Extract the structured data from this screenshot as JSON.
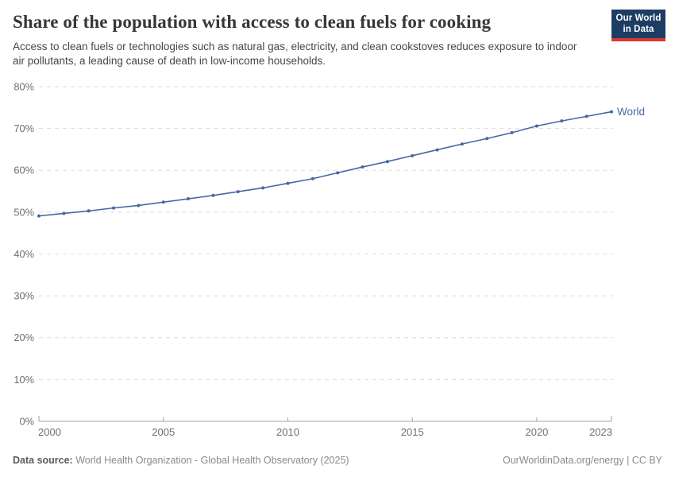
{
  "header": {
    "logo_line1": "Our World",
    "logo_line2": "in Data",
    "logo_bg_color": "#1d3d63",
    "logo_accent_color": "#d73a34"
  },
  "chart_data": {
    "type": "line",
    "title": "Share of the population with access to clean fuels for cooking",
    "subtitle": "Access to clean fuels or technologies such as natural gas, electricity, and clean cookstoves reduces exposure to indoor air pollutants, a leading cause of death in low-income households.",
    "x": [
      2000,
      2001,
      2002,
      2003,
      2004,
      2005,
      2006,
      2007,
      2008,
      2009,
      2010,
      2011,
      2012,
      2013,
      2014,
      2015,
      2016,
      2017,
      2018,
      2019,
      2020,
      2021,
      2022,
      2023
    ],
    "series": [
      {
        "name": "World",
        "color": "#4568a3",
        "values": [
          49.1,
          49.7,
          50.3,
          51.0,
          51.6,
          52.4,
          53.2,
          54.0,
          54.9,
          55.8,
          56.9,
          58.0,
          59.4,
          60.8,
          62.1,
          63.5,
          64.9,
          66.3,
          67.6,
          69.0,
          70.6,
          71.8,
          72.9,
          74.0
        ]
      }
    ],
    "xlim": [
      2000,
      2023
    ],
    "ylim": [
      0,
      80
    ],
    "x_ticks": [
      2000,
      2005,
      2010,
      2015,
      2020,
      2023
    ],
    "x_tick_labels": [
      "2000",
      "2005",
      "2010",
      "2015",
      "2020",
      "2023"
    ],
    "y_ticks": [
      0,
      10,
      20,
      30,
      40,
      50,
      60,
      70,
      80
    ],
    "y_tick_labels": [
      "0%",
      "10%",
      "20%",
      "30%",
      "40%",
      "50%",
      "60%",
      "70%",
      "80%"
    ],
    "grid": "horizontal-dashed",
    "legend_position": "line-end-right",
    "colors": {
      "gridline": "#dcdcdc",
      "axis": "#a3a3a3",
      "tick_label": "#6e6e6e"
    }
  },
  "footer": {
    "source_label": "Data source:",
    "source_text": " World Health Organization - Global Health Observatory (2025)",
    "credit": "OurWorldinData.org/energy | CC BY"
  }
}
